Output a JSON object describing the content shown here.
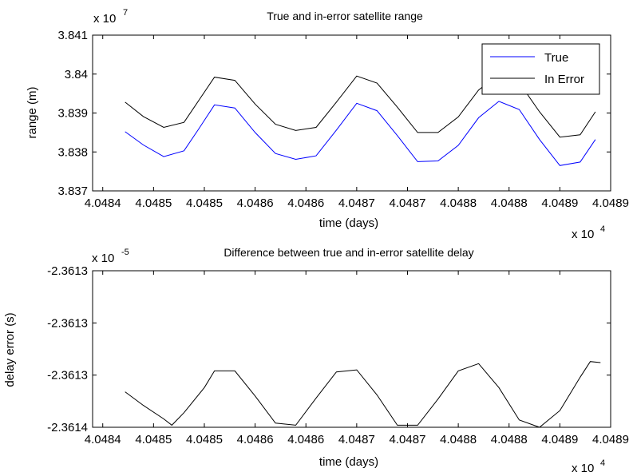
{
  "chart_data": [
    {
      "type": "line",
      "title": "True and in-error satellite range",
      "xlabel": "time (days)",
      "ylabel": "range (m)",
      "x_multiplier_label": "x 10",
      "x_multiplier_exp": "4",
      "y_multiplier_label": "x 10",
      "y_multiplier_exp": "7",
      "xlim": [
        40483.9,
        40489.0
      ],
      "ylim": [
        3.837,
        3.841
      ],
      "x_tick_values": [
        40484,
        40484.5,
        40485,
        40485.5,
        40486,
        40486.5,
        40487,
        40487.5,
        40488,
        40488.5,
        40489
      ],
      "x_tick_labels": [
        "4.0484",
        "4.0485",
        "4.0485",
        "4.0486",
        "4.0486",
        "4.0487",
        "4.0487",
        "4.0488",
        "4.0488",
        "4.0489",
        "4.0489"
      ],
      "y_tick_values": [
        3.837,
        3.838,
        3.839,
        3.84,
        3.841
      ],
      "y_tick_labels": [
        "3.837",
        "3.838",
        "3.839",
        "3.84",
        "3.841"
      ],
      "grid": false,
      "legend_position": "top-right",
      "series": [
        {
          "name": "True",
          "color": "#0000ff",
          "x": [
            40484.22,
            40484.4,
            40484.6,
            40484.8,
            40484.95,
            40485.1,
            40485.3,
            40485.5,
            40485.7,
            40485.9,
            40486.1,
            40486.3,
            40486.5,
            40486.7,
            40486.9,
            40487.1,
            40487.3,
            40487.5,
            40487.7,
            40487.9,
            40488.1,
            40488.3,
            40488.5,
            40488.7,
            40488.85
          ],
          "y": [
            3.83852,
            3.83818,
            3.83788,
            3.83803,
            3.83861,
            3.83921,
            3.83913,
            3.8385,
            3.83796,
            3.83781,
            3.8379,
            3.83856,
            3.83925,
            3.83906,
            3.83842,
            3.83775,
            3.83777,
            3.83817,
            3.83888,
            3.8393,
            3.83909,
            3.83832,
            3.83765,
            3.83774,
            3.83832
          ]
        },
        {
          "name": "In Error",
          "color": "#000000",
          "x": [
            40484.22,
            40484.4,
            40484.6,
            40484.8,
            40484.95,
            40485.1,
            40485.3,
            40485.5,
            40485.7,
            40485.9,
            40486.1,
            40486.3,
            40486.5,
            40486.7,
            40486.9,
            40487.1,
            40487.3,
            40487.5,
            40487.7,
            40487.9,
            40488.1,
            40488.3,
            40488.5,
            40488.7,
            40488.85
          ],
          "y": [
            3.83928,
            3.83891,
            3.83863,
            3.83876,
            3.83934,
            3.83992,
            3.83984,
            3.83923,
            3.83871,
            3.83855,
            3.83863,
            3.83928,
            3.83995,
            3.83977,
            3.83915,
            3.8385,
            3.8385,
            3.8389,
            3.83959,
            3.84,
            3.83978,
            3.83903,
            3.83838,
            3.83844,
            3.83903
          ]
        }
      ]
    },
    {
      "type": "line",
      "title": "Difference between true and in-error satellite delay",
      "xlabel": "time (days)",
      "ylabel": "delay error (s)",
      "x_multiplier_label": "x 10",
      "x_multiplier_exp": "4",
      "y_multiplier_label": "x 10",
      "y_multiplier_exp": "-5",
      "xlim": [
        40483.9,
        40489.0
      ],
      "ylim": [
        -2.3614,
        -2.36125
      ],
      "x_tick_values": [
        40484,
        40484.5,
        40485,
        40485.5,
        40486,
        40486.5,
        40487,
        40487.5,
        40488,
        40488.5,
        40489
      ],
      "x_tick_labels": [
        "4.0484",
        "4.0485",
        "4.0485",
        "4.0486",
        "4.0486",
        "4.0487",
        "4.0487",
        "4.0488",
        "4.0488",
        "4.0489",
        "4.0489"
      ],
      "y_tick_values": [
        -2.3614,
        -2.36135,
        -2.3613,
        -2.36125
      ],
      "y_tick_labels": [
        "-2.3614",
        "-2.3613",
        "-2.3613",
        "-2.3613"
      ],
      "grid": false,
      "series": [
        {
          "color": "#000000",
          "x": [
            40484.22,
            40484.4,
            40484.6,
            40484.68,
            40484.8,
            40485.0,
            40485.1,
            40485.3,
            40485.5,
            40485.7,
            40485.9,
            40486.1,
            40486.3,
            40486.5,
            40486.7,
            40486.9,
            40487.1,
            40487.3,
            40487.5,
            40487.7,
            40487.9,
            40488.1,
            40488.3,
            40488.5,
            40488.7,
            40488.8,
            40488.9
          ],
          "y": [
            -2.361366,
            -2.361379,
            -2.361392,
            -2.361398,
            -2.361386,
            -2.361362,
            -2.361346,
            -2.361346,
            -2.36137,
            -2.361396,
            -2.361398,
            -2.361372,
            -2.361347,
            -2.361345,
            -2.361369,
            -2.361398,
            -2.361398,
            -2.361373,
            -2.361346,
            -2.361339,
            -2.361362,
            -2.361393,
            -2.3614,
            -2.361384,
            -2.361352,
            -2.361337,
            -2.361338
          ]
        }
      ]
    }
  ]
}
